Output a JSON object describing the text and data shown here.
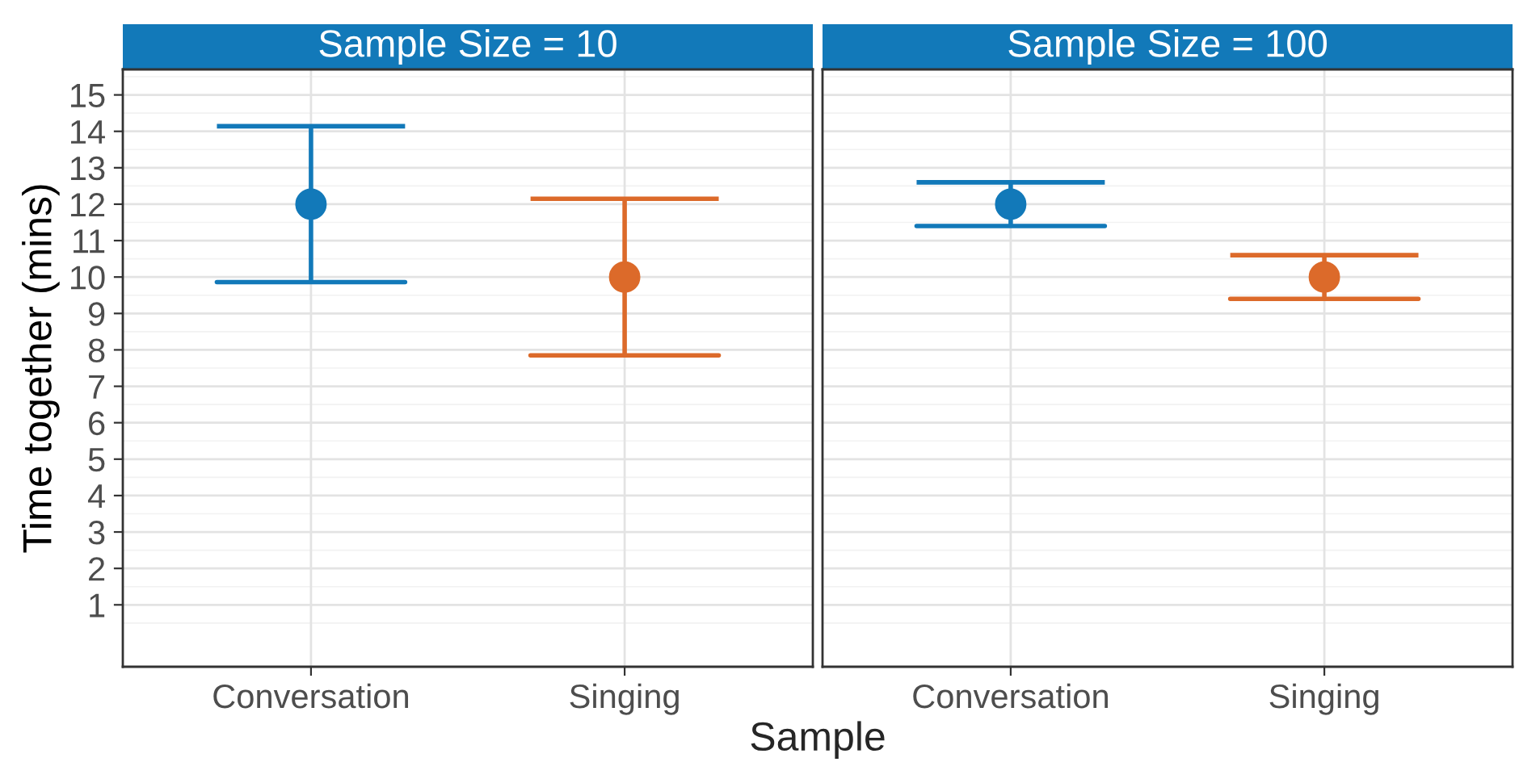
{
  "chart_data": [
    {
      "type": "scatter",
      "title": "Sample Size = 10",
      "xlabel": "Sample",
      "ylabel": "Time together (mins)",
      "categories": [
        "Conversation",
        "Singing"
      ],
      "values": [
        12,
        10
      ],
      "errors": [
        2.14,
        2.15
      ],
      "colors": [
        "#1279b9",
        "#dc6a2a"
      ],
      "ylim": [
        -0.7,
        15.7
      ],
      "yticks": [
        1,
        2,
        3,
        4,
        5,
        6,
        7,
        8,
        9,
        10,
        11,
        12,
        13,
        14,
        15
      ],
      "grid": true,
      "marker": "circle"
    },
    {
      "type": "scatter",
      "title": "Sample Size = 100",
      "categories": [
        "Conversation",
        "Singing"
      ],
      "values": [
        12,
        10
      ],
      "errors": [
        0.6,
        0.6
      ],
      "colors": [
        "#1279b9",
        "#dc6a2a"
      ],
      "ylim": [
        -0.7,
        15.7
      ],
      "yticks": [
        1,
        2,
        3,
        4,
        5,
        6,
        7,
        8,
        9,
        10,
        11,
        12,
        13,
        14,
        15
      ],
      "grid": true,
      "marker": "circle",
      "tick_labels": "x"
    }
  ]
}
